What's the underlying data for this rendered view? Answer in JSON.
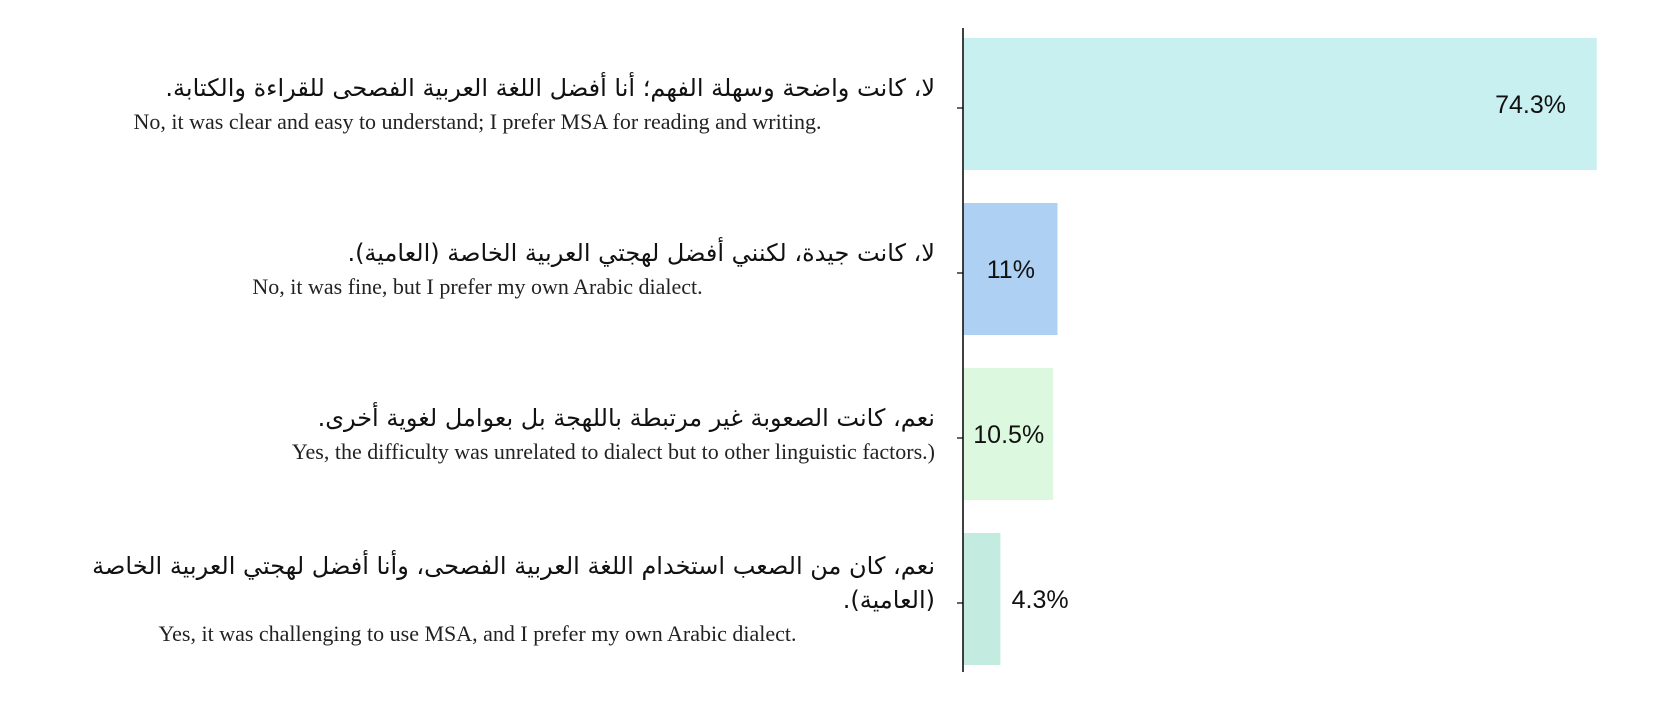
{
  "chart_data": {
    "type": "bar",
    "orientation": "horizontal",
    "title": "",
    "xlabel": "",
    "ylabel": "",
    "xlim": [
      0,
      74.3
    ],
    "grid": false,
    "legend": "none",
    "categories": [
      {
        "ar": "لا، كانت واضحة وسهلة الفهم؛ أنا أفضل اللغة العربية الفصحى للقراءة والكتابة.",
        "en": "No, it was clear and easy to understand; I prefer MSA for reading and writing."
      },
      {
        "ar": "لا، كانت جيدة، لكنني أفضل لهجتي العربية الخاصة (العامية).",
        "en": "No, it was fine, but I prefer my own Arabic dialect."
      },
      {
        "ar": "نعم، كانت الصعوبة غير مرتبطة باللهجة بل بعوامل لغوية أخرى.",
        "en": "Yes, the difficulty was unrelated to dialect but to other linguistic factors.)"
      },
      {
        "ar": "نعم، كان من الصعب استخدام اللغة العربية الفصحى، وأنا أفضل لهجتي العربية الخاصة (العامية).",
        "en": "Yes, it was challenging to use MSA, and I prefer my own Arabic dialect."
      }
    ],
    "values": [
      74.3,
      11,
      10.5,
      4.3
    ],
    "value_labels": [
      "74.3%",
      "11%",
      "10.5%",
      "4.3%"
    ],
    "colors": [
      "#c9f0f0",
      "#add0f3",
      "#dcf8de",
      "#c3ebdf"
    ]
  }
}
